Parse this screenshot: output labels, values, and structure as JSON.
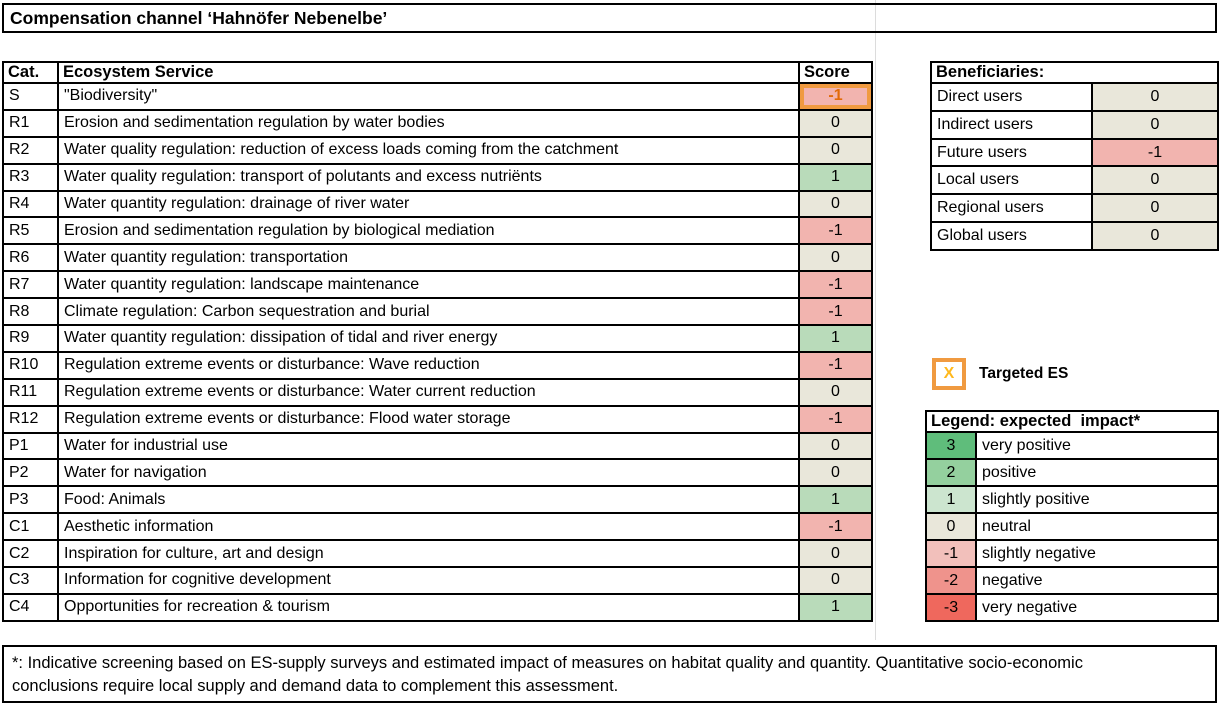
{
  "title": "Compensation channel ‘Hahnöfer Nebenelbe’",
  "main_table": {
    "headers": {
      "cat": "Cat.",
      "service": "Ecosystem Service",
      "score": "Score"
    },
    "rows": [
      {
        "cat": "S",
        "service": "\"Biodiversity\"",
        "score": -1,
        "targeted": true
      },
      {
        "cat": "R1",
        "service": "Erosion and sedimentation regulation by water bodies",
        "score": 0
      },
      {
        "cat": "R2",
        "service": "Water quality regulation: reduction of excess loads coming from the catchment",
        "score": 0
      },
      {
        "cat": "R3",
        "service": "Water quality regulation: transport of polutants and excess nutriënts",
        "score": 1
      },
      {
        "cat": "R4",
        "service": "Water quantity regulation: drainage of river water",
        "score": 0
      },
      {
        "cat": "R5",
        "service": "Erosion and sedimentation regulation by biological mediation",
        "score": -1
      },
      {
        "cat": "R6",
        "service": "Water quantity regulation: transportation",
        "score": 0
      },
      {
        "cat": "R7",
        "service": "Water quantity regulation: landscape maintenance",
        "score": -1
      },
      {
        "cat": "R8",
        "service": "Climate regulation: Carbon sequestration and burial",
        "score": -1
      },
      {
        "cat": "R9",
        "service": "Water quantity regulation: dissipation of tidal and river energy",
        "score": 1
      },
      {
        "cat": "R10",
        "service": "Regulation extreme events or disturbance: Wave reduction",
        "score": -1
      },
      {
        "cat": "R11",
        "service": "Regulation extreme events or disturbance: Water current reduction",
        "score": 0
      },
      {
        "cat": "R12",
        "service": "Regulation extreme events or disturbance: Flood water storage",
        "score": -1
      },
      {
        "cat": "P1",
        "service": "Water for industrial use",
        "score": 0
      },
      {
        "cat": "P2",
        "service": "Water for navigation",
        "score": 0
      },
      {
        "cat": "P3",
        "service": "Food: Animals",
        "score": 1
      },
      {
        "cat": "C1",
        "service": "Aesthetic information",
        "score": -1
      },
      {
        "cat": "C2",
        "service": "Inspiration for culture, art and design",
        "score": 0
      },
      {
        "cat": "C3",
        "service": "Information for cognitive development",
        "score": 0
      },
      {
        "cat": "C4",
        "service": "Opportunities for recreation & tourism",
        "score": 1
      }
    ]
  },
  "beneficiaries": {
    "header": "Beneficiaries:",
    "rows": [
      {
        "label": "Direct users",
        "value": 0
      },
      {
        "label": "Indirect users",
        "value": 0
      },
      {
        "label": "Future users",
        "value": -1
      },
      {
        "label": "Local users",
        "value": 0
      },
      {
        "label": "Regional users",
        "value": 0
      },
      {
        "label": "Global users",
        "value": 0
      }
    ]
  },
  "targeted_marker": {
    "symbol": "X",
    "label": "Targeted ES"
  },
  "legend": {
    "header": "Legend: expected  impact*",
    "rows": [
      {
        "value": 3,
        "label": "very positive",
        "color": "#5FBD7B"
      },
      {
        "value": 2,
        "label": "positive",
        "color": "#94D09E"
      },
      {
        "value": 1,
        "label": "slightly positive",
        "color": "#CCE5CF"
      },
      {
        "value": 0,
        "label": "neutral",
        "color": "#E9E7DA"
      },
      {
        "value": -1,
        "label": "slightly negative",
        "color": "#F2C0BB"
      },
      {
        "value": -2,
        "label": "negative",
        "color": "#EF938C"
      },
      {
        "value": -3,
        "label": "very negative",
        "color": "#EF685D"
      }
    ]
  },
  "colors": {
    "score_fill": {
      "1": "#B9DBBA",
      "0": "#E9E7DA",
      "-1": "#F2B4AF"
    },
    "targeted_border": "#F09A40",
    "targeted_text": "#E26B0A",
    "x_symbol": "#FFB81C"
  },
  "footnote": "*: Indicative screening based on ES-supply surveys and estimated impact of measures on habitat quality and quantity. Quantitative socio-economic conclusions require local supply and demand data to complement this assessment."
}
